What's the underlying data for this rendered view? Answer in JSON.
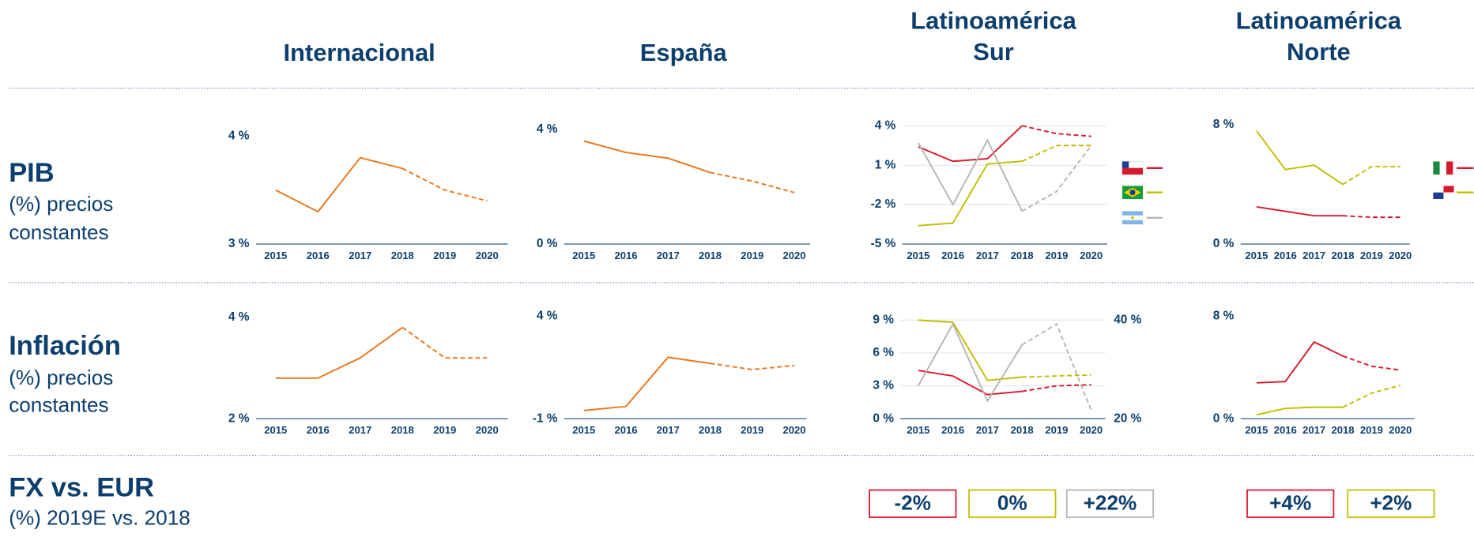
{
  "columns": [
    [
      "Internacional"
    ],
    [
      "España"
    ],
    [
      "Latinoamérica",
      "Sur"
    ],
    [
      "Latinoamérica",
      "Norte"
    ]
  ],
  "rows": [
    {
      "title": "PIB",
      "subtitle": [
        "(%) precios",
        "constantes"
      ]
    },
    {
      "title": "Inflación",
      "subtitle": [
        "(%) precios",
        "constantes"
      ]
    },
    {
      "title": "FX vs. EUR",
      "subtitle": [
        "(%) 2019E vs. 2018"
      ]
    }
  ],
  "chart_data": [
    {
      "type": "line",
      "categories": [
        "2015",
        "2016",
        "2017",
        "2018",
        "2019",
        "2020"
      ],
      "forecast_from": "2018",
      "ylim": [
        3,
        4
      ],
      "yticks": [
        {
          "value": 3,
          "label": "3 %"
        },
        {
          "value": 4,
          "label": "4 %"
        }
      ],
      "grid": false,
      "series": [
        {
          "color": "#e8751a",
          "values": [
            3.5,
            3.3,
            3.8,
            3.7,
            3.5,
            3.4
          ]
        }
      ]
    },
    {
      "type": "line",
      "categories": [
        "2015",
        "2016",
        "2017",
        "2018",
        "2019",
        "2020"
      ],
      "forecast_from": "2018",
      "ylim": [
        0,
        4
      ],
      "yticks": [
        {
          "value": 0,
          "label": "0 %"
        },
        {
          "value": 4,
          "label": "4 %"
        }
      ],
      "grid": false,
      "series": [
        {
          "color": "#e8751a",
          "values": [
            3.6,
            3.2,
            3.0,
            2.5,
            2.2,
            1.8
          ]
        }
      ]
    },
    {
      "type": "line",
      "categories": [
        "2015",
        "2016",
        "2017",
        "2018",
        "2019",
        "2020"
      ],
      "forecast_from": "2018",
      "ylim": [
        -5,
        4
      ],
      "yticks": [
        {
          "value": -5,
          "label": "-5 %"
        },
        {
          "value": -2,
          "label": "-2 %"
        },
        {
          "value": 1,
          "label": "1 %"
        },
        {
          "value": 4,
          "label": "4 %"
        }
      ],
      "grid": true,
      "series": [
        {
          "color": "#d7192c",
          "values": [
            2.4,
            1.3,
            1.5,
            4.0,
            3.4,
            3.2
          ]
        },
        {
          "color": "#c2bd00",
          "values": [
            -3.6,
            -3.4,
            1.1,
            1.3,
            2.5,
            2.5
          ]
        },
        {
          "color": "#b8b4b2",
          "values": [
            2.7,
            -2.0,
            2.9,
            -2.5,
            -1.0,
            2.5
          ]
        }
      ]
    },
    {
      "type": "line",
      "categories": [
        "2015",
        "2016",
        "2017",
        "2018",
        "2019",
        "2020"
      ],
      "forecast_from": "2018",
      "ylim": [
        0,
        8
      ],
      "yticks": [
        {
          "value": 0,
          "label": "0 %"
        },
        {
          "value": 8,
          "label": "8 %"
        }
      ],
      "grid": false,
      "series": [
        {
          "color": "#d7192c",
          "values": [
            2.5,
            2.2,
            1.9,
            1.9,
            1.8,
            1.8
          ]
        },
        {
          "color": "#c2bd00",
          "values": [
            7.6,
            5.0,
            5.3,
            4.0,
            5.2,
            5.2
          ]
        }
      ]
    },
    {
      "type": "line",
      "categories": [
        "2015",
        "2016",
        "2017",
        "2018",
        "2019",
        "2020"
      ],
      "forecast_from": "2018",
      "ylim": [
        2,
        4
      ],
      "yticks": [
        {
          "value": 2,
          "label": "2 %"
        },
        {
          "value": 4,
          "label": "4 %"
        }
      ],
      "grid": false,
      "series": [
        {
          "color": "#e8751a",
          "values": [
            2.8,
            2.8,
            3.2,
            3.8,
            3.2,
            3.2
          ]
        }
      ]
    },
    {
      "type": "line",
      "categories": [
        "2015",
        "2016",
        "2017",
        "2018",
        "2019",
        "2020"
      ],
      "forecast_from": "2018",
      "ylim": [
        -1,
        4
      ],
      "yticks": [
        {
          "value": -1,
          "label": "-1 %"
        },
        {
          "value": 4,
          "label": "4 %"
        }
      ],
      "grid": false,
      "series": [
        {
          "color": "#e8751a",
          "values": [
            -0.6,
            -0.4,
            2.0,
            1.7,
            1.4,
            1.6
          ]
        }
      ]
    },
    {
      "type": "line",
      "categories": [
        "2015",
        "2016",
        "2017",
        "2018",
        "2019",
        "2020"
      ],
      "forecast_from": "2018",
      "ylim": [
        0,
        9
      ],
      "yticks": [
        {
          "value": 0,
          "label": "0 %"
        },
        {
          "value": 3,
          "label": "3 %"
        },
        {
          "value": 6,
          "label": "6 %"
        },
        {
          "value": 9,
          "label": "9 %"
        }
      ],
      "grid": true,
      "y2lim": [
        20,
        40
      ],
      "y2ticks": [
        {
          "value": 20,
          "label": "20 %"
        },
        {
          "value": 40,
          "label": "40 %"
        }
      ],
      "series": [
        {
          "color": "#d7192c",
          "values": [
            4.4,
            3.9,
            2.2,
            2.5,
            3.0,
            3.1
          ]
        },
        {
          "color": "#c2bd00",
          "values": [
            9.0,
            8.8,
            3.5,
            3.8,
            3.9,
            4.0
          ]
        },
        {
          "color": "#b8b4b2",
          "axis": "y2",
          "values": [
            26.7,
            39.2,
            23.6,
            35.0,
            39.2,
            21.7
          ]
        }
      ]
    },
    {
      "type": "line",
      "categories": [
        "2015",
        "2016",
        "2017",
        "2018",
        "2019",
        "2020"
      ],
      "forecast_from": "2018",
      "ylim": [
        0,
        8
      ],
      "yticks": [
        {
          "value": 0,
          "label": "0 %"
        },
        {
          "value": 8,
          "label": "8 %"
        }
      ],
      "grid": false,
      "series": [
        {
          "color": "#d7192c",
          "values": [
            2.8,
            2.9,
            6.0,
            4.9,
            4.1,
            3.8
          ]
        },
        {
          "color": "#c2bd00",
          "values": [
            0.3,
            0.8,
            0.9,
            0.9,
            2.0,
            2.6
          ]
        }
      ]
    }
  ],
  "fx": [
    {
      "label": "-2%",
      "color": "#d7192c"
    },
    {
      "label": "0%",
      "color": "#c2bd00"
    },
    {
      "label": "+22%",
      "color": "#b8b4b2"
    },
    {
      "label": "+4%",
      "color": "#d7192c"
    },
    {
      "label": "+2%",
      "color": "#c2bd00"
    }
  ]
}
